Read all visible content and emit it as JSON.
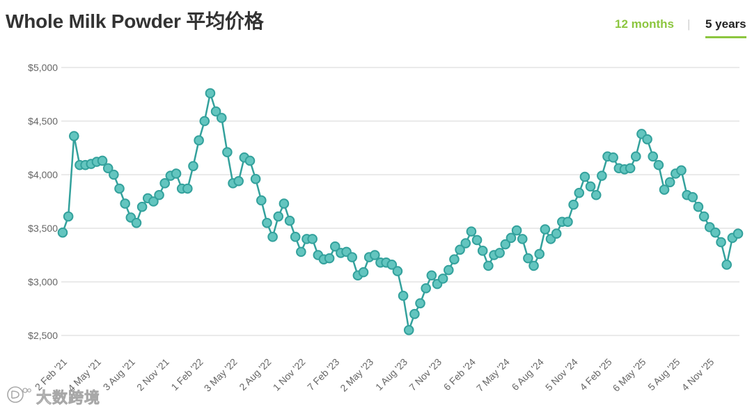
{
  "theme": {
    "accent": "#8cc63f"
  },
  "range_tabs": [
    {
      "label": "12 months",
      "selected": false
    },
    {
      "label": "5 years",
      "selected": true
    }
  ],
  "range_tab_separator": "|",
  "watermark": "大数跨境",
  "chart_data": {
    "type": "line",
    "title": "Whole Milk Powder 平均价格",
    "xlabel": "",
    "ylabel": "",
    "ylim": [
      2500,
      5000
    ],
    "y_ticks": [
      2500,
      3000,
      3500,
      4000,
      4500,
      5000
    ],
    "y_tick_labels": [
      "$2,500",
      "$3,000",
      "$3,500",
      "$4,000",
      "$4,500",
      "$5,000"
    ],
    "x_tick_labels": [
      "2 Feb '21",
      "4 May '21",
      "3 Aug '21",
      "2 Nov '21",
      "1 Feb '22",
      "3 May '22",
      "2 Aug '22",
      "1 Nov '22",
      "7 Feb '23",
      "2 May '23",
      "1 Aug '23",
      "7 Nov '23",
      "6 Feb '24",
      "7 May '24",
      "6 Aug '24",
      "5 Nov '24",
      "4 Feb '25",
      "6 May '25",
      "5 Aug '25",
      "4 Nov '25"
    ],
    "grid": true,
    "series": [
      {
        "color": "#33a19c",
        "marker_fill": "#63c5bf",
        "values": [
          3460,
          3610,
          4360,
          4090,
          4090,
          4100,
          4120,
          4130,
          4060,
          4000,
          3870,
          3730,
          3600,
          3550,
          3700,
          3780,
          3750,
          3810,
          3920,
          3990,
          4010,
          3870,
          3870,
          4080,
          4320,
          4500,
          4760,
          4590,
          4530,
          4210,
          3920,
          3940,
          4160,
          4130,
          3960,
          3760,
          3550,
          3420,
          3610,
          3730,
          3570,
          3420,
          3280,
          3400,
          3400,
          3250,
          3210,
          3220,
          3330,
          3270,
          3280,
          3230,
          3060,
          3090,
          3230,
          3250,
          3180,
          3180,
          3160,
          3100,
          2870,
          2550,
          2700,
          2800,
          2940,
          3060,
          2980,
          3030,
          3110,
          3210,
          3300,
          3360,
          3470,
          3390,
          3290,
          3150,
          3250,
          3270,
          3350,
          3410,
          3480,
          3400,
          3220,
          3150,
          3260,
          3490,
          3400,
          3450,
          3560,
          3560,
          3720,
          3830,
          3980,
          3890,
          3810,
          3990,
          4170,
          4160,
          4060,
          4050,
          4060,
          4170,
          4380,
          4330,
          4170,
          4090,
          3860,
          3930,
          4010,
          4040,
          3810,
          3790,
          3700,
          3610,
          3510,
          3460,
          3370,
          3160,
          3410,
          3450
        ]
      }
    ]
  }
}
